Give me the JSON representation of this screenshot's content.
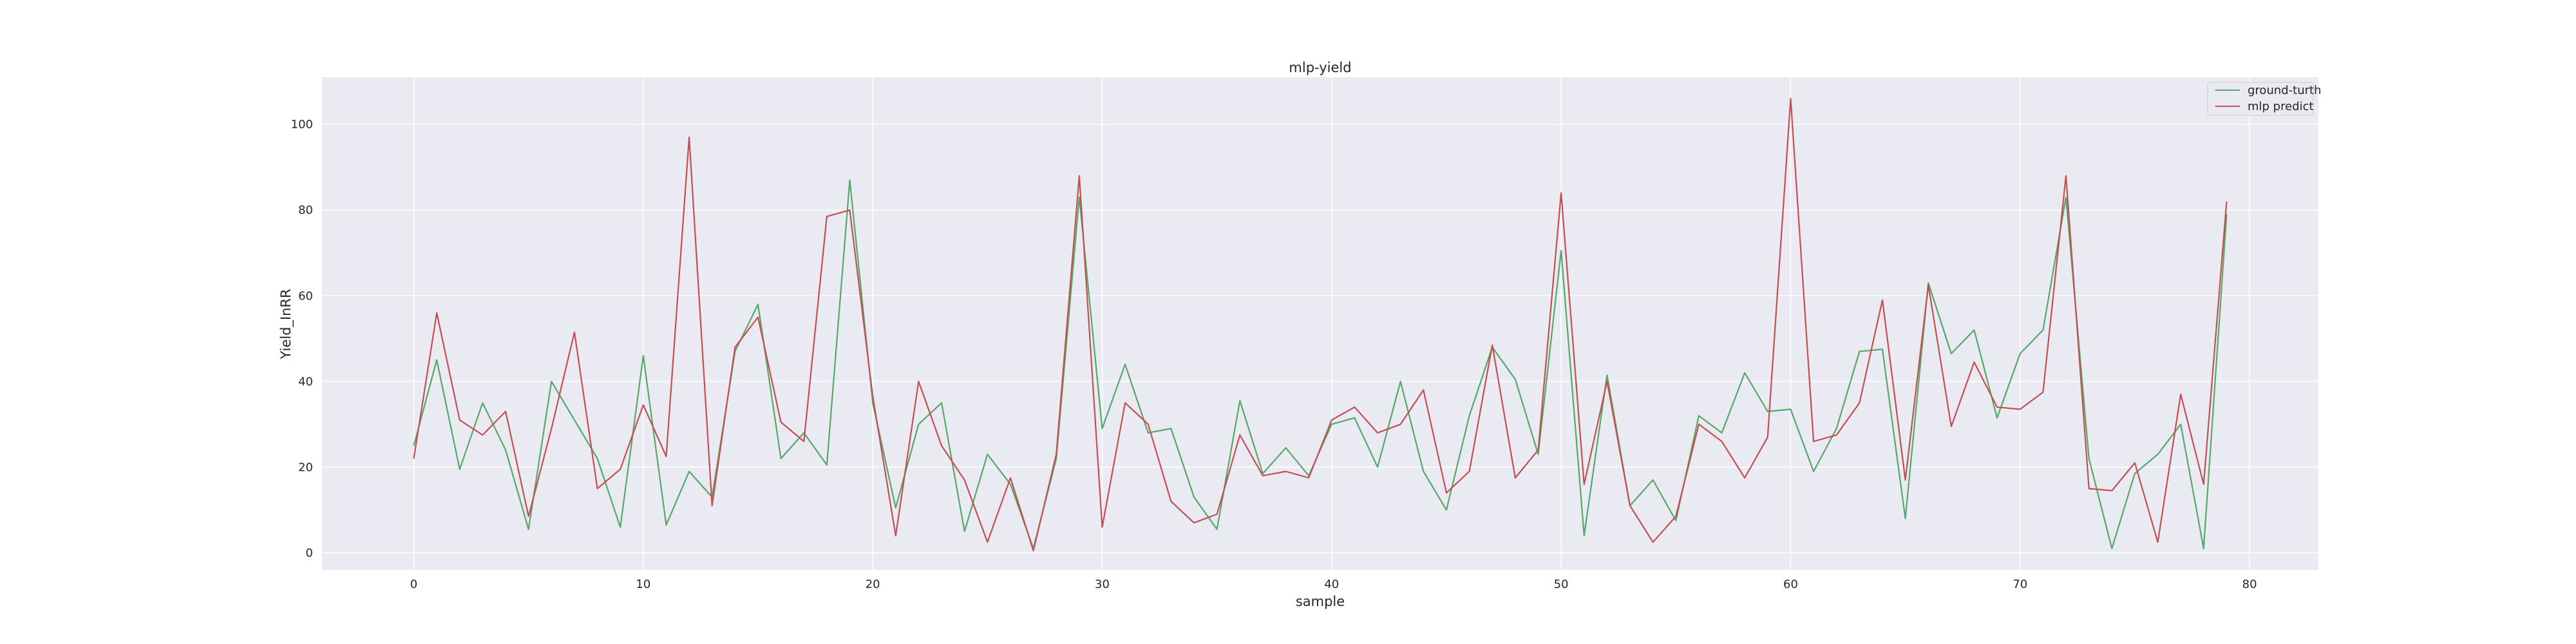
{
  "chart_data": {
    "type": "line",
    "title": "mlp-yield",
    "xlabel": "sample",
    "ylabel": "Yield_InRR",
    "xlim": [
      -4,
      83
    ],
    "ylim": [
      -4,
      111
    ],
    "xticks": [
      0,
      10,
      20,
      30,
      40,
      50,
      60,
      70,
      80
    ],
    "yticks": [
      0,
      20,
      40,
      60,
      80,
      100
    ],
    "grid": true,
    "legend_position": "top-right",
    "x": [
      0,
      1,
      2,
      3,
      4,
      5,
      6,
      7,
      8,
      9,
      10,
      11,
      12,
      13,
      14,
      15,
      16,
      17,
      18,
      19,
      20,
      21,
      22,
      23,
      24,
      25,
      26,
      27,
      28,
      29,
      30,
      31,
      32,
      33,
      34,
      35,
      36,
      37,
      38,
      39,
      40,
      41,
      42,
      43,
      44,
      45,
      46,
      47,
      48,
      49,
      50,
      51,
      52,
      53,
      54,
      55,
      56,
      57,
      58,
      59,
      60,
      61,
      62,
      63,
      64,
      65,
      66,
      67,
      68,
      69,
      70,
      71,
      72,
      73,
      74,
      75,
      76,
      77,
      78,
      79
    ],
    "series": [
      {
        "name": "ground-turth",
        "color": "#55a868",
        "values": [
          25,
          45,
          19.5,
          35,
          24,
          5.5,
          40,
          31,
          22,
          6,
          46,
          6.5,
          19,
          13,
          47,
          58,
          22,
          28,
          20.5,
          87,
          35,
          10.5,
          30,
          35,
          5,
          23,
          16,
          1,
          22,
          83,
          29,
          44,
          28,
          29,
          13,
          5.5,
          35.5,
          18.5,
          24.5,
          18,
          30,
          31.5,
          20,
          40,
          19,
          10,
          32,
          48,
          40.5,
          23,
          70.5,
          4,
          41.5,
          11,
          17,
          7.5,
          32,
          28,
          42,
          33,
          33.5,
          19,
          29,
          47,
          47.5,
          8,
          63,
          46.5,
          52,
          31.5,
          46.5,
          52,
          83,
          22,
          1,
          18.5,
          23,
          30,
          1,
          79
        ]
      },
      {
        "name": "mlp predict",
        "color": "#c44e52",
        "values": [
          22,
          56,
          31,
          27.5,
          33,
          8.5,
          29,
          51.5,
          15,
          19.5,
          34.5,
          22.5,
          97,
          11,
          48,
          55,
          30.5,
          26,
          78.5,
          80,
          36.5,
          4,
          40,
          25,
          17,
          2.5,
          17.5,
          0.5,
          23,
          88,
          6,
          35,
          30,
          12,
          7,
          9,
          27.5,
          18,
          19,
          17.5,
          31,
          34,
          28,
          30,
          38,
          14,
          19,
          48.5,
          17.5,
          24,
          84,
          16,
          40,
          11,
          2.5,
          8.5,
          30,
          26,
          17.5,
          27,
          106,
          26,
          27.5,
          35,
          59,
          17,
          62.5,
          29.5,
          44.5,
          34,
          33.5,
          37.5,
          88,
          15,
          14.5,
          21,
          2.5,
          37,
          16,
          82
        ]
      }
    ]
  }
}
